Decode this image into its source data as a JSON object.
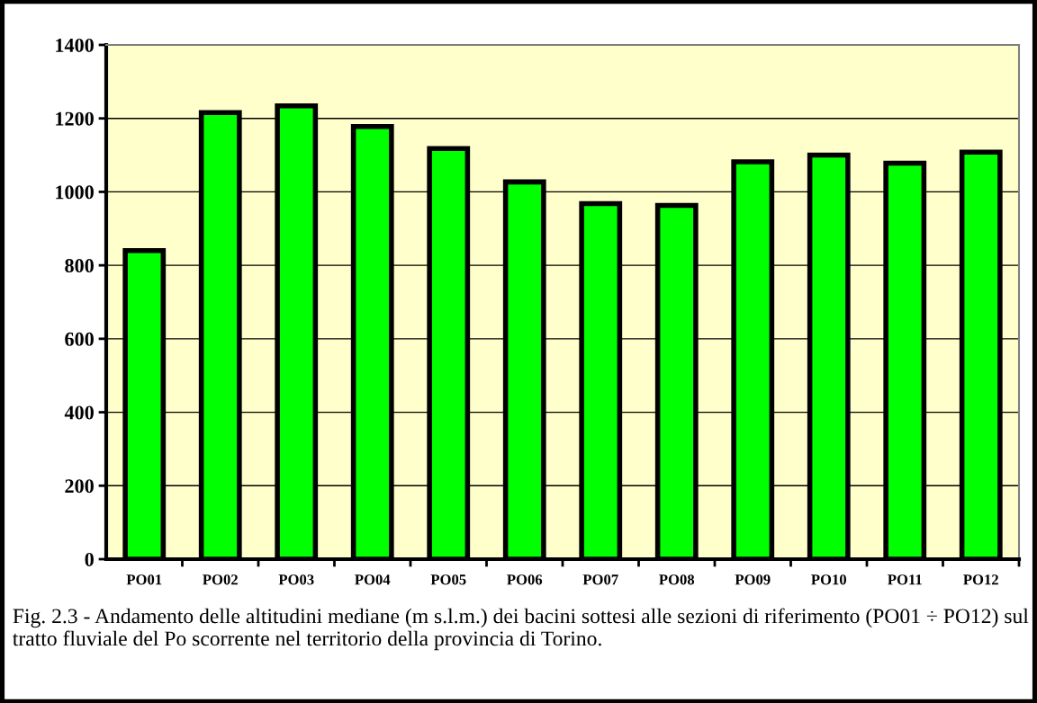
{
  "chart_data": {
    "type": "bar",
    "categories": [
      "PO01",
      "PO02",
      "PO03",
      "PO04",
      "PO05",
      "PO06",
      "PO07",
      "PO08",
      "PO09",
      "PO10",
      "PO11",
      "PO12"
    ],
    "values": [
      840,
      1216,
      1234,
      1178,
      1118,
      1027,
      968,
      963,
      1082,
      1100,
      1078,
      1108
    ],
    "color": "#00ff00",
    "ylim": [
      0,
      1400
    ],
    "yticks": [
      0,
      200,
      400,
      600,
      800,
      1000,
      1200,
      1400
    ],
    "grid": "y",
    "legend": false,
    "annotations": [
      "Fig. 2.3 - Andamento delle altitudini mediane (m s.l.m.) dei bacini sottesi alle sezioni di riferimento (PO01 ÷ PO12) sul tratto fluviale del Po scorrente nel territorio della provincia di Torino."
    ]
  }
}
